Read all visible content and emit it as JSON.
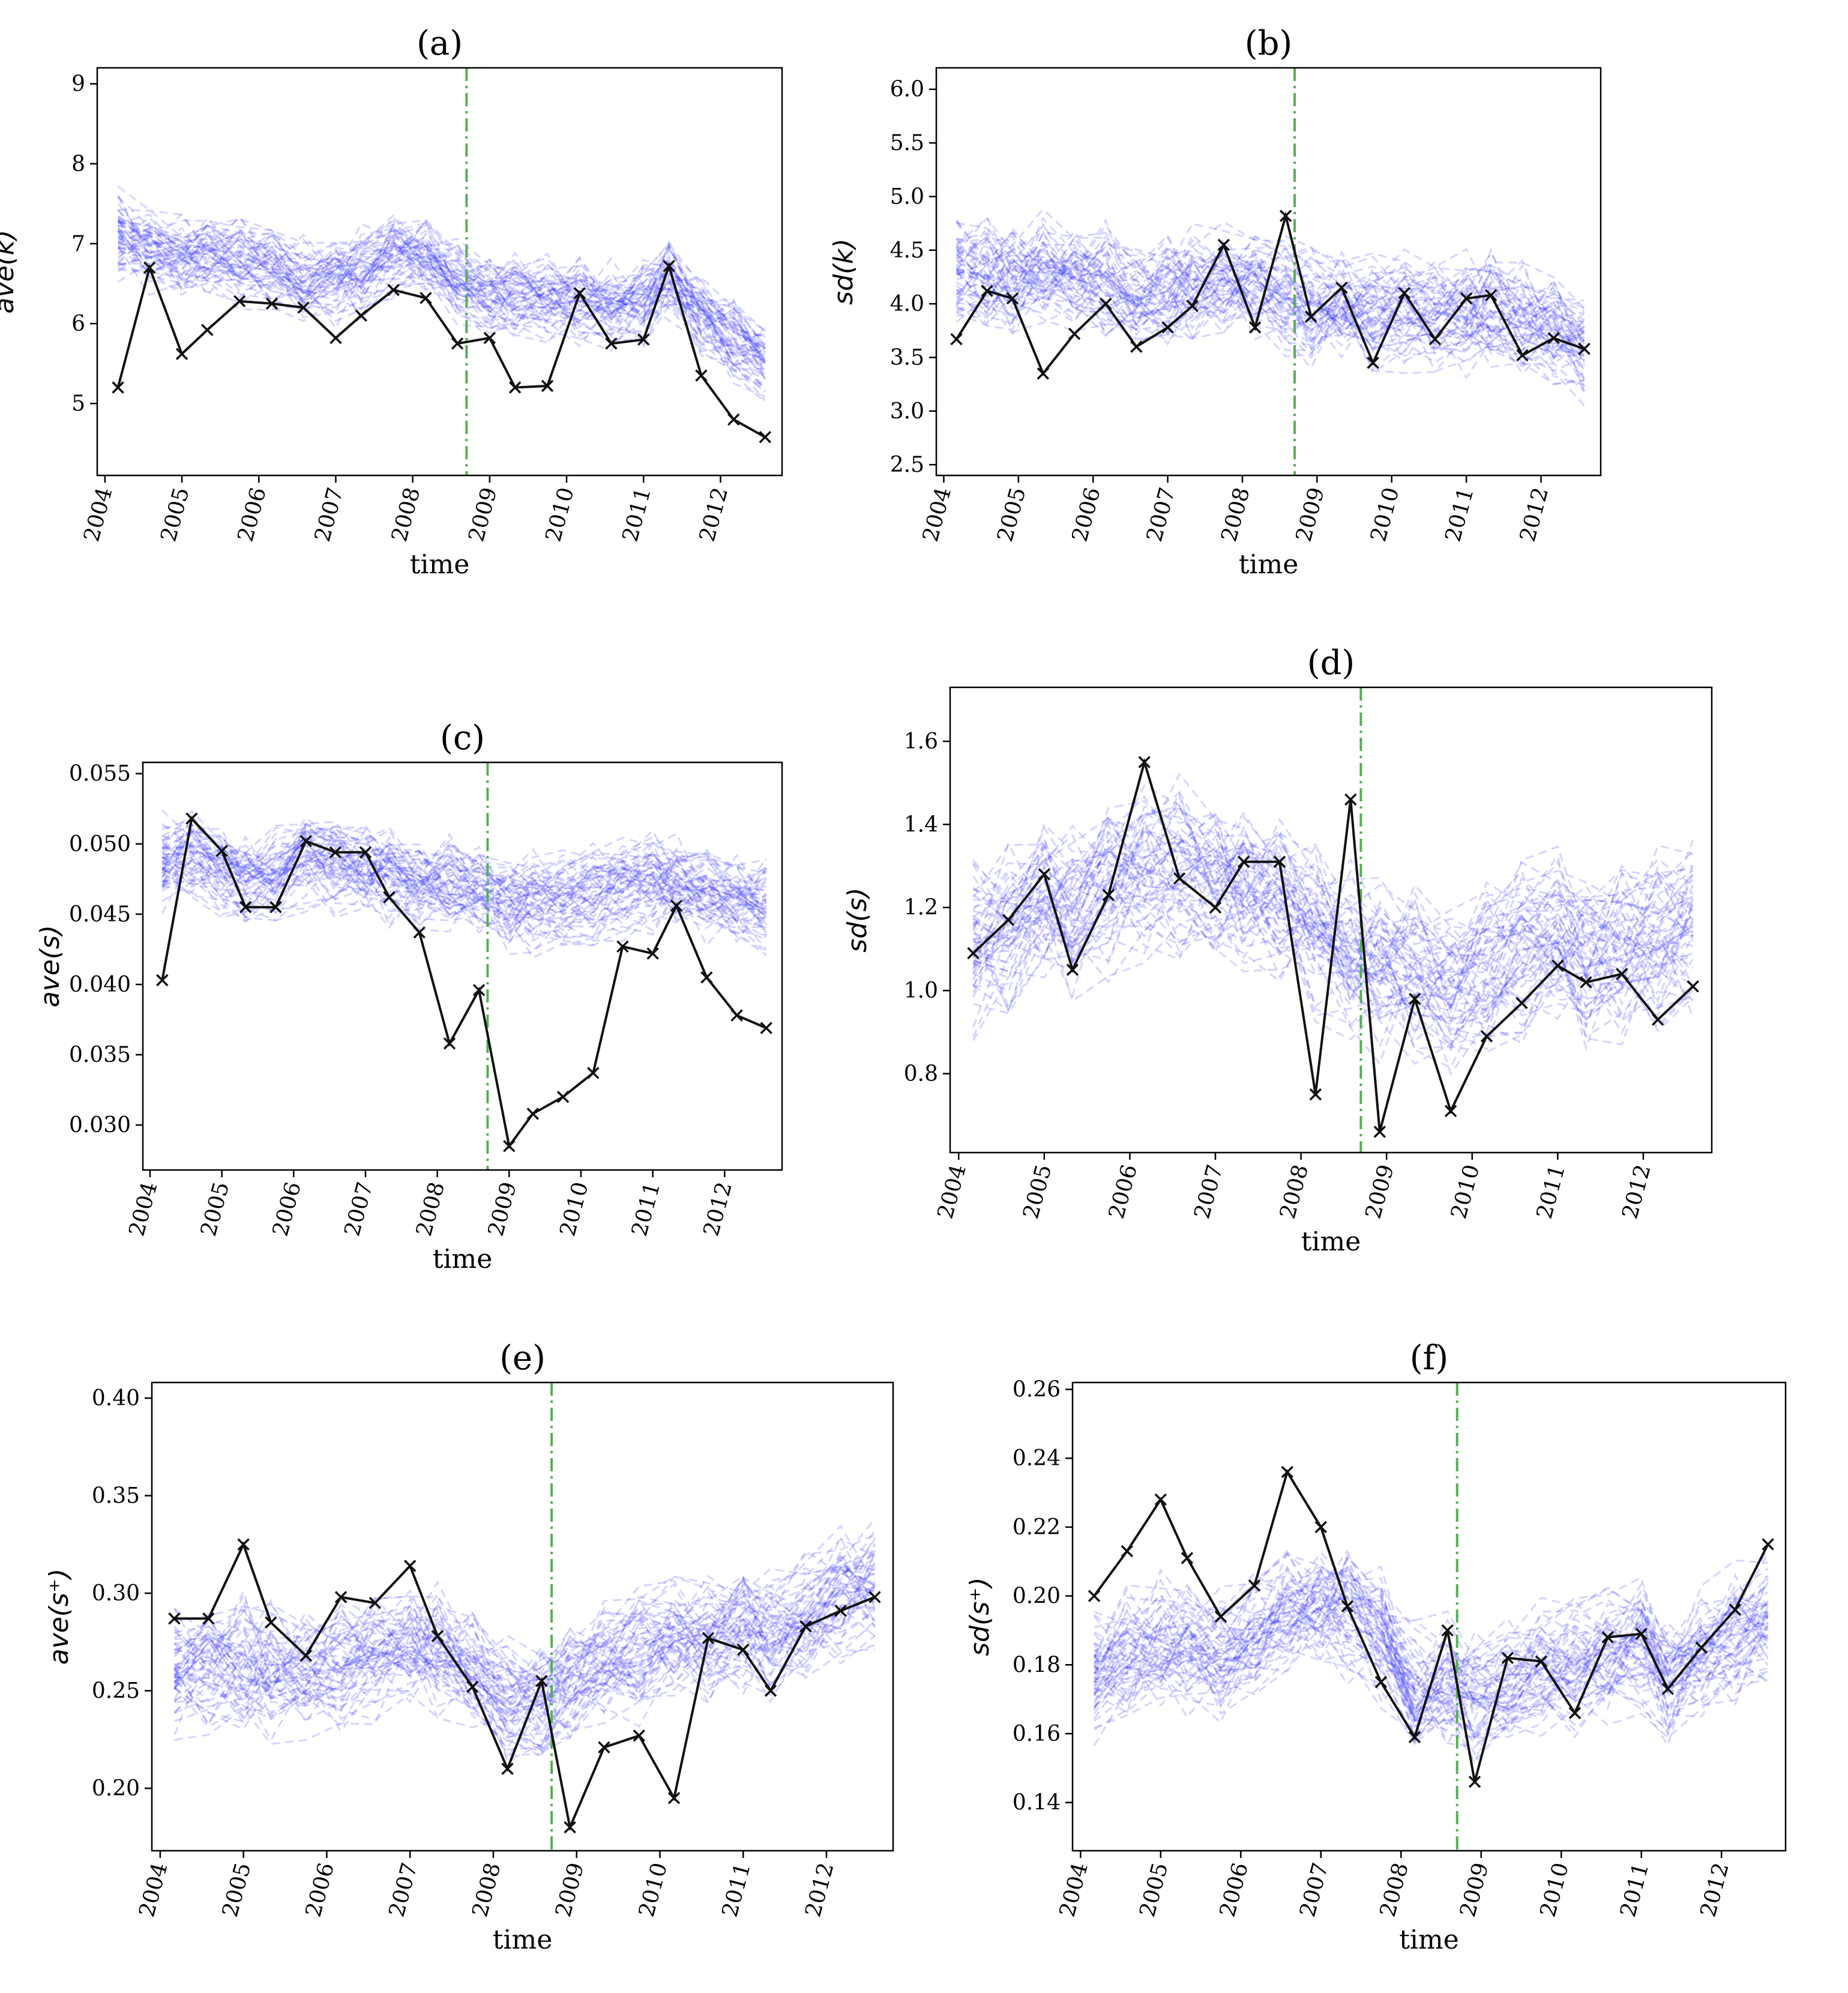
{
  "colors": {
    "observed": "#111111",
    "null_model": "#2a2aff",
    "event": "#5aac5a"
  },
  "chart_data": [
    {
      "type": "line",
      "title": "(a)",
      "xlabel": "time",
      "ylabel": "ave(k)",
      "xlim": [
        2003.9,
        2012.8
      ],
      "ylim": [
        4.1,
        9.2
      ],
      "yticks": [
        5,
        6,
        7,
        8,
        9
      ],
      "ytick_labels": [
        "5",
        "6",
        "7",
        "8",
        "9"
      ],
      "event_x": 2008.7,
      "x": [
        2004.17,
        2004.58,
        2005.0,
        2005.33,
        2005.75,
        2006.17,
        2006.58,
        2007.0,
        2007.33,
        2007.75,
        2008.17,
        2008.58,
        2009.0,
        2009.33,
        2009.75,
        2010.17,
        2010.58,
        2011.0,
        2011.33,
        2011.75,
        2012.17,
        2012.58
      ],
      "observed": [
        5.2,
        6.7,
        5.62,
        5.92,
        6.28,
        6.25,
        6.2,
        5.82,
        6.1,
        6.42,
        6.32,
        5.75,
        5.82,
        5.2,
        5.22,
        6.38,
        5.75,
        5.8,
        6.72,
        5.35,
        4.8,
        4.58
      ],
      "null_band": {
        "center": [
          7.1,
          6.9,
          6.85,
          6.9,
          6.8,
          6.7,
          6.5,
          6.55,
          6.65,
          6.85,
          6.9,
          6.5,
          6.4,
          6.35,
          6.3,
          6.3,
          6.25,
          6.3,
          6.55,
          6.1,
          5.8,
          5.5
        ],
        "spread": 0.45,
        "runs": 60
      }
    },
    {
      "type": "line",
      "title": "(b)",
      "xlabel": "time",
      "ylabel": "sd(k)",
      "xlim": [
        2003.9,
        2012.8
      ],
      "ylim": [
        2.4,
        6.2
      ],
      "yticks": [
        2.5,
        3.0,
        3.5,
        4.0,
        4.5,
        5.0,
        5.5,
        6.0
      ],
      "ytick_labels": [
        "2.5",
        "3.0",
        "3.5",
        "4.0",
        "4.5",
        "5.0",
        "5.5",
        "6.0"
      ],
      "event_x": 2008.7,
      "x": [
        2004.17,
        2004.58,
        2004.92,
        2005.33,
        2005.75,
        2006.17,
        2006.58,
        2007.0,
        2007.33,
        2007.75,
        2008.17,
        2008.58,
        2008.92,
        2009.33,
        2009.75,
        2010.17,
        2010.58,
        2011.0,
        2011.33,
        2011.75,
        2012.17,
        2012.58
      ],
      "observed": [
        3.67,
        4.12,
        4.05,
        3.35,
        3.72,
        4.0,
        3.6,
        3.78,
        3.98,
        4.55,
        3.78,
        4.82,
        3.88,
        4.15,
        3.45,
        4.1,
        3.67,
        4.05,
        4.08,
        3.52,
        3.68,
        3.58
      ],
      "null_band": {
        "center": [
          4.3,
          4.25,
          4.2,
          4.3,
          4.25,
          4.2,
          4.05,
          4.1,
          4.15,
          4.2,
          4.15,
          4.05,
          3.95,
          3.95,
          3.9,
          3.9,
          3.85,
          3.9,
          3.95,
          3.85,
          3.75,
          3.6
        ],
        "spread": 0.45,
        "runs": 60
      }
    },
    {
      "type": "line",
      "title": "(c)",
      "xlabel": "time",
      "ylabel": "ave(s)",
      "xlim": [
        2003.9,
        2012.8
      ],
      "ylim": [
        0.0268,
        0.0558
      ],
      "yticks": [
        0.03,
        0.035,
        0.04,
        0.045,
        0.05,
        0.055
      ],
      "ytick_labels": [
        "0.030",
        "0.035",
        "0.040",
        "0.045",
        "0.050",
        "0.055"
      ],
      "event_x": 2008.7,
      "x": [
        2004.17,
        2004.58,
        2005.0,
        2005.33,
        2005.75,
        2006.17,
        2006.58,
        2007.0,
        2007.33,
        2007.75,
        2008.17,
        2008.58,
        2009.0,
        2009.33,
        2009.75,
        2010.17,
        2010.58,
        2011.0,
        2011.33,
        2011.75,
        2012.17,
        2012.58
      ],
      "observed": [
        0.0403,
        0.0518,
        0.0495,
        0.0455,
        0.0455,
        0.0502,
        0.0494,
        0.0494,
        0.0462,
        0.0437,
        0.0358,
        0.0396,
        0.0285,
        0.0308,
        0.032,
        0.0337,
        0.0427,
        0.0422,
        0.0456,
        0.0405,
        0.0378,
        0.0369
      ],
      "null_band": {
        "center": [
          0.0485,
          0.049,
          0.048,
          0.0475,
          0.0478,
          0.049,
          0.0485,
          0.0482,
          0.0478,
          0.0472,
          0.047,
          0.0465,
          0.0455,
          0.0458,
          0.046,
          0.0465,
          0.0468,
          0.0472,
          0.047,
          0.0465,
          0.046,
          0.0455
        ],
        "spread": 0.0028,
        "runs": 60
      }
    },
    {
      "type": "line",
      "title": "(d)",
      "xlabel": "time",
      "ylabel": "sd(s)",
      "xlim": [
        2003.9,
        2012.8
      ],
      "ylim": [
        0.61,
        1.73
      ],
      "yticks": [
        0.8,
        1.0,
        1.2,
        1.4,
        1.6
      ],
      "ytick_labels": [
        "0.8",
        "1.0",
        "1.2",
        "1.4",
        "1.6"
      ],
      "event_x": 2008.7,
      "x": [
        2004.17,
        2004.58,
        2005.0,
        2005.33,
        2005.75,
        2006.17,
        2006.58,
        2007.0,
        2007.33,
        2007.75,
        2008.17,
        2008.58,
        2008.92,
        2009.33,
        2009.75,
        2010.17,
        2010.58,
        2011.0,
        2011.33,
        2011.75,
        2012.17,
        2012.58
      ],
      "observed": [
        1.09,
        1.17,
        1.28,
        1.05,
        1.23,
        1.55,
        1.27,
        1.2,
        1.31,
        1.31,
        0.75,
        1.46,
        0.66,
        0.98,
        0.71,
        0.89,
        0.97,
        1.06,
        1.02,
        1.04,
        0.93,
        1.01
      ],
      "null_band": {
        "center": [
          1.1,
          1.15,
          1.2,
          1.2,
          1.25,
          1.28,
          1.3,
          1.28,
          1.25,
          1.22,
          1.15,
          1.1,
          1.05,
          1.05,
          1.0,
          1.05,
          1.1,
          1.12,
          1.08,
          1.1,
          1.12,
          1.15
        ],
        "spread": 0.17,
        "runs": 60
      }
    },
    {
      "type": "line",
      "title": "(e)",
      "xlabel": "time",
      "ylabel": "ave(s⁺)",
      "xlim": [
        2003.9,
        2012.8
      ],
      "ylim": [
        0.168,
        0.408
      ],
      "yticks": [
        0.2,
        0.25,
        0.3,
        0.35,
        0.4
      ],
      "ytick_labels": [
        "0.20",
        "0.25",
        "0.30",
        "0.35",
        "0.40"
      ],
      "event_x": 2008.7,
      "x": [
        2004.17,
        2004.58,
        2005.0,
        2005.33,
        2005.75,
        2006.17,
        2006.58,
        2007.0,
        2007.33,
        2007.75,
        2008.17,
        2008.58,
        2008.92,
        2009.33,
        2009.75,
        2010.17,
        2010.58,
        2011.0,
        2011.33,
        2011.75,
        2012.17,
        2012.58
      ],
      "observed": [
        0.287,
        0.287,
        0.325,
        0.285,
        0.268,
        0.298,
        0.295,
        0.314,
        0.278,
        0.252,
        0.21,
        0.255,
        0.18,
        0.221,
        0.227,
        0.195,
        0.277,
        0.271,
        0.25,
        0.283,
        0.291,
        0.298
      ],
      "null_band": {
        "center": [
          0.258,
          0.262,
          0.265,
          0.26,
          0.258,
          0.265,
          0.268,
          0.275,
          0.272,
          0.262,
          0.245,
          0.245,
          0.255,
          0.262,
          0.268,
          0.272,
          0.278,
          0.282,
          0.275,
          0.285,
          0.298,
          0.302
        ],
        "spread": 0.028,
        "runs": 60
      }
    },
    {
      "type": "line",
      "title": "(f)",
      "xlabel": "time",
      "ylabel": "sd(s⁺)",
      "xlim": [
        2003.9,
        2012.8
      ],
      "ylim": [
        0.126,
        0.262
      ],
      "yticks": [
        0.14,
        0.16,
        0.18,
        0.2,
        0.22,
        0.24,
        0.26
      ],
      "ytick_labels": [
        "0.14",
        "0.16",
        "0.18",
        "0.20",
        "0.22",
        "0.24",
        "0.26"
      ],
      "event_x": 2008.7,
      "x": [
        2004.17,
        2004.58,
        2005.0,
        2005.33,
        2005.75,
        2006.17,
        2006.58,
        2007.0,
        2007.33,
        2007.75,
        2008.17,
        2008.58,
        2008.92,
        2009.33,
        2009.75,
        2010.17,
        2010.58,
        2011.0,
        2011.33,
        2011.75,
        2012.17,
        2012.58
      ],
      "observed": [
        0.2,
        0.213,
        0.228,
        0.211,
        0.194,
        0.203,
        0.236,
        0.22,
        0.197,
        0.175,
        0.159,
        0.19,
        0.146,
        0.182,
        0.181,
        0.166,
        0.188,
        0.189,
        0.173,
        0.185,
        0.196,
        0.215
      ],
      "null_band": {
        "center": [
          0.178,
          0.183,
          0.188,
          0.185,
          0.182,
          0.188,
          0.195,
          0.198,
          0.196,
          0.188,
          0.172,
          0.174,
          0.17,
          0.175,
          0.178,
          0.18,
          0.183,
          0.186,
          0.176,
          0.184,
          0.188,
          0.192
        ],
        "spread": 0.016,
        "runs": 60
      }
    }
  ],
  "x_ticks": [
    2004,
    2005,
    2006,
    2007,
    2008,
    2009,
    2010,
    2011,
    2012
  ],
  "x_tick_labels": [
    "2004",
    "2005",
    "2006",
    "2007",
    "2008",
    "2009",
    "2010",
    "2011",
    "2012"
  ]
}
